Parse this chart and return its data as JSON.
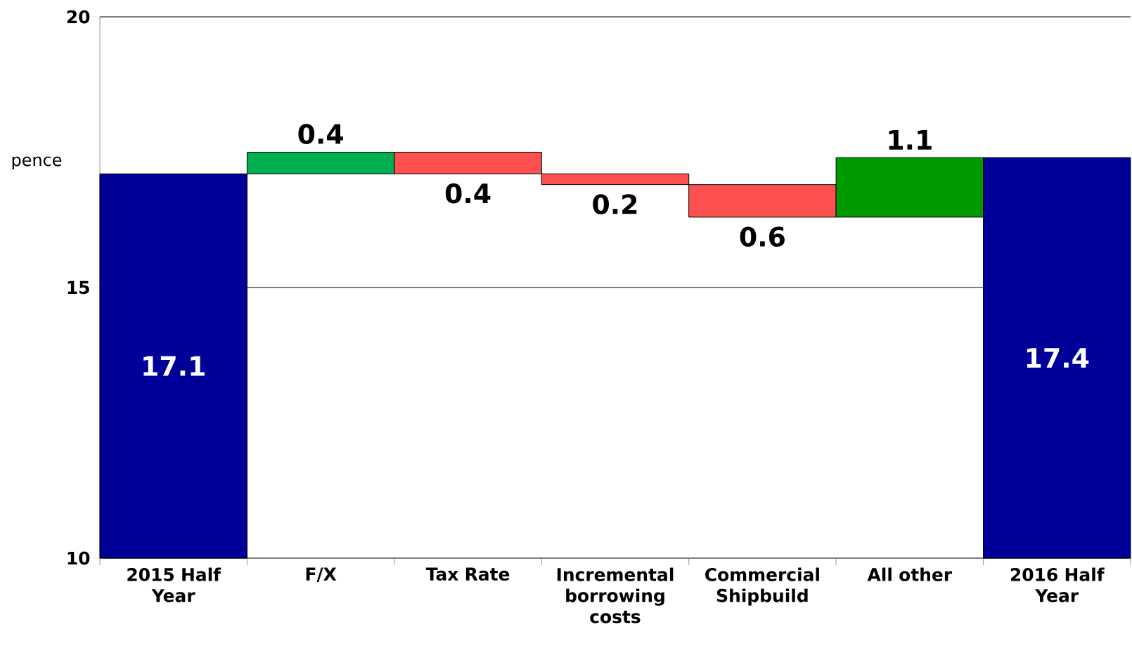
{
  "chart_data": {
    "type": "bar",
    "ylabel": "pence",
    "categories": [
      "2015 Half Year",
      "F/X",
      "Tax Rate",
      "Incremental borrowing costs",
      "Commercial Shipbuild",
      "All other",
      "2016 Half Year"
    ],
    "values": [
      17.1,
      0.4,
      -0.4,
      -0.2,
      -0.6,
      1.1,
      17.4
    ],
    "base": [
      null,
      17.1,
      17.5,
      17.1,
      16.9,
      16.3,
      null
    ],
    "colors": [
      "#000099",
      "#00b050",
      "#ff5050",
      "#ff5050",
      "#ff5050",
      "#009900",
      "#000099"
    ],
    "value_labels": [
      "17.1",
      "0.4",
      "0.4",
      "0.2",
      "0.6",
      "1.1",
      "17.4"
    ],
    "ylim": [
      10,
      20
    ],
    "yticks": [
      10,
      15,
      20
    ],
    "grid": "y"
  }
}
